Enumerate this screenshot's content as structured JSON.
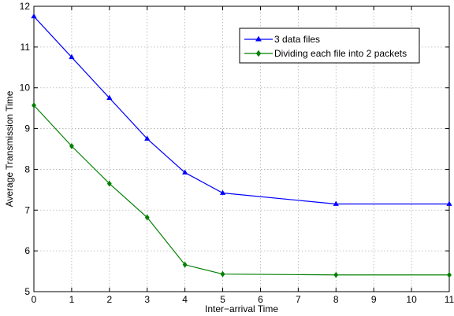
{
  "chart_data": {
    "type": "line",
    "title": "",
    "xlabel": "Inter−arrival Time",
    "ylabel": "Average Transmission Time",
    "xlim": [
      0,
      11
    ],
    "ylim": [
      5,
      12
    ],
    "xticks": [
      0,
      1,
      2,
      3,
      4,
      5,
      6,
      7,
      8,
      9,
      10,
      11
    ],
    "yticks": [
      5,
      6,
      7,
      8,
      9,
      10,
      11,
      12
    ],
    "grid": true,
    "legend_position": "top-right",
    "series": [
      {
        "name": "3 data files",
        "color": "#0000ff",
        "marker": "triangle",
        "x": [
          0,
          1,
          2,
          3,
          4,
          5,
          8,
          11
        ],
        "y": [
          11.75,
          10.75,
          9.75,
          8.75,
          7.92,
          7.42,
          7.15,
          7.15
        ]
      },
      {
        "name": "Dividing each file into 2 packets",
        "color": "#008000",
        "marker": "diamond",
        "x": [
          0,
          1,
          2,
          3,
          4,
          5,
          8,
          11
        ],
        "y": [
          9.57,
          8.57,
          7.65,
          6.82,
          5.66,
          5.43,
          5.41,
          5.41
        ]
      }
    ]
  }
}
